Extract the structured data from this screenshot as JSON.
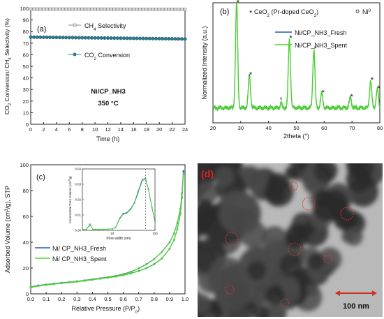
{
  "chart_data": [
    {
      "panel": "(a)",
      "type": "line",
      "xlabel": "Time (h)",
      "ylabel": "CO2 Conversion/ CH4 Selectivity (%)",
      "xlim": [
        0,
        24
      ],
      "ylim": [
        0,
        100
      ],
      "xticks": [
        "0",
        "2",
        "4",
        "6",
        "8",
        "10",
        "12",
        "14",
        "16",
        "18",
        "20",
        "22",
        "24"
      ],
      "yticks": [
        "0",
        "10",
        "20",
        "30",
        "40",
        "50",
        "60",
        "70",
        "80",
        "90",
        "100"
      ],
      "x": [
        0,
        0.5,
        1,
        1.5,
        2,
        2.5,
        3,
        3.5,
        4,
        4.5,
        5,
        5.5,
        6,
        6.5,
        7,
        7.5,
        8,
        8.5,
        9,
        9.5,
        10,
        10.5,
        11,
        11.5,
        12,
        12.5,
        13,
        13.5,
        14,
        14.5,
        15,
        15.5,
        16,
        16.5,
        17,
        17.5,
        18,
        18.5,
        19,
        19.5,
        20,
        20.5,
        21,
        21.5,
        22,
        22.5,
        23,
        23.5,
        24
      ],
      "series": [
        {
          "name": "CH4 Selectivity",
          "y_start": 99.4,
          "y_end": 99.2,
          "color": "#8a8a8a",
          "marker": "square"
        },
        {
          "name": "CO2 Conversion",
          "y_start": 75.2,
          "y_end": 73.6,
          "color": "#2d7a8c",
          "marker": "circle"
        }
      ],
      "annotations": [
        "Ni/CP_NH3",
        "350 °C"
      ],
      "grid": false,
      "legend": "top-center"
    },
    {
      "panel": "(b)",
      "type": "line",
      "xlabel": "2theta (°)",
      "ylabel": "Normalized Intensity (a.u.)",
      "xlim": [
        20,
        80
      ],
      "xticks": [
        "20",
        "30",
        "40",
        "50",
        "60",
        "70",
        "80"
      ],
      "legend_title": "CeO2 (Pr-doped CeO2)",
      "legend_marker": "Ni0",
      "series": [
        {
          "name": "Ni/CP_NH3_Fresh",
          "color": "#1f5fa6"
        },
        {
          "name": "Ni/CP_NH3_Spent",
          "color": "#4dd22e"
        }
      ],
      "peaks_2theta": [
        28.5,
        33.1,
        47.5,
        56.3,
        59.1,
        69.4,
        76.7,
        79.1
      ],
      "peak_heights_norm": [
        1.0,
        0.31,
        0.66,
        0.56,
        0.14,
        0.1,
        0.26,
        0.18
      ],
      "ni_peak_2theta": 44.5,
      "grid": false,
      "legend": "top-right"
    },
    {
      "panel": "(c)",
      "type": "line",
      "xlabel": "Relative Pressure (P/P0)",
      "ylabel": "Adsorbed Volume (cm3/g), STP",
      "xlim": [
        0.0,
        1.0
      ],
      "ylim": [
        0,
        100
      ],
      "xticks": [
        "0.0",
        "0.1",
        "0.2",
        "0.3",
        "0.4",
        "0.5",
        "0.6",
        "0.7",
        "0.8",
        "0.9",
        "1.0"
      ],
      "yticks": [
        "0",
        "20",
        "40",
        "60",
        "80",
        "100"
      ],
      "x": [
        0.0,
        0.05,
        0.1,
        0.15,
        0.2,
        0.25,
        0.3,
        0.35,
        0.4,
        0.45,
        0.5,
        0.55,
        0.6,
        0.65,
        0.7,
        0.75,
        0.8,
        0.85,
        0.9,
        0.93,
        0.95,
        0.97,
        0.98,
        0.99
      ],
      "series": [
        {
          "name": "Ni/ CP_NH3_Fresh",
          "color": "#1f5fa6",
          "adsorption": [
            5,
            6.3,
            7,
            7.7,
            8.3,
            8.9,
            9.5,
            10.2,
            11,
            11.8,
            12.6,
            13.5,
            14.6,
            16,
            17.8,
            20,
            23,
            27.5,
            35,
            42,
            50,
            62,
            75,
            95
          ],
          "desorption": [
            5.5,
            6.6,
            7.3,
            8,
            8.6,
            9.2,
            9.8,
            10.5,
            11.3,
            12.1,
            13,
            14,
            15.3,
            17.2,
            19.8,
            23,
            27,
            32.5,
            40,
            47,
            55,
            66,
            78,
            95
          ]
        },
        {
          "name": "Ni/ CP_NH3_Spent",
          "color": "#4dd22e",
          "adsorption": [
            4.8,
            6.1,
            6.8,
            7.5,
            8.1,
            8.7,
            9.3,
            10,
            10.8,
            11.6,
            12.4,
            13.3,
            14.4,
            15.8,
            17.6,
            19.8,
            22.8,
            27.3,
            34.8,
            41.8,
            49.8,
            61.5,
            74,
            93
          ],
          "desorption": [
            5.3,
            6.4,
            7.1,
            7.8,
            8.4,
            9,
            9.6,
            10.3,
            11.1,
            11.9,
            12.8,
            13.8,
            15.1,
            17,
            19.6,
            22.8,
            26.8,
            32.3,
            39.8,
            46.8,
            54.8,
            65.5,
            77,
            93
          ]
        }
      ],
      "grid": false,
      "legend": "bottom-left"
    },
    {
      "panel": "(c) inset",
      "type": "line",
      "xlabel": "Pore width (nm)",
      "ylabel": "Incremental Pore Volume (cm3/g)",
      "xscale": "log",
      "xticks": [
        "10",
        "100"
      ],
      "yticks": [
        "0.00",
        "0.01",
        "0.02",
        "0.03",
        "0.04"
      ],
      "ylim": [
        0,
        0.04
      ],
      "x": [
        2,
        2.5,
        3,
        3.5,
        4,
        5,
        6,
        8,
        10,
        12,
        15,
        18,
        22,
        27,
        33,
        40,
        50,
        60,
        70,
        85,
        100
      ],
      "series": [
        {
          "name": "Fresh",
          "color": "#1f5fa6",
          "values": [
            0.0005,
            0.0007,
            0.004,
            0.0007,
            0.0006,
            0.0006,
            0.0007,
            0.0008,
            0.001,
            0.002,
            0.008,
            0.011,
            0.0115,
            0.014,
            0.018,
            0.025,
            0.033,
            0.034,
            0.027,
            0.015,
            0.006
          ]
        },
        {
          "name": "Spent",
          "color": "#4dd22e",
          "values": [
            0.0005,
            0.0007,
            0.0035,
            0.0007,
            0.0006,
            0.0006,
            0.0007,
            0.0008,
            0.001,
            0.0018,
            0.0075,
            0.0105,
            0.0112,
            0.0135,
            0.0175,
            0.024,
            0.032,
            0.0335,
            0.0265,
            0.0145,
            0.0055
          ]
        }
      ]
    }
  ],
  "panel_d": {
    "label": "(d)",
    "scale_bar": "100 nm",
    "image_kind": "TEM micrograph"
  }
}
